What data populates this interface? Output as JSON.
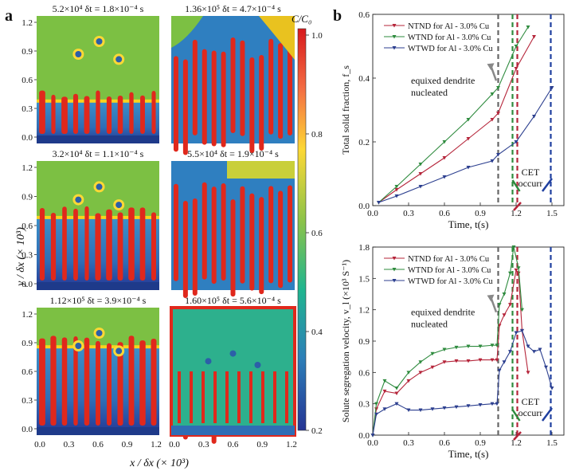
{
  "panel_a": {
    "letter": "a",
    "titles": [
      "5.2×10⁴ δt = 1.8×10⁻⁴ s",
      "1.36×10⁵ δt = 4.7×10⁻⁴ s",
      "3.2×10⁴ δt = 1.1×10⁻⁴ s",
      "5.5×10⁴ δt = 1.9×10⁻⁴ s",
      "1.12×10⁵ δt = 3.9×10⁻⁴ s",
      "1.60×10⁵ δt = 5.6×10⁻⁴ s"
    ],
    "y_ticks": [
      "1.2",
      "0.9",
      "0.6",
      "0.3",
      "0.0"
    ],
    "x_ticks": [
      "0.0",
      "0.3",
      "0.6",
      "0.9",
      "1.2"
    ],
    "y_label": "y / δx (× 10³)",
    "x_label": "x / δx (× 10³)",
    "colorbar": {
      "label": "C/C₀",
      "ticks": [
        "1.0",
        "0.8",
        "0.6",
        "0.4",
        "0.2"
      ],
      "colors": [
        "#d7191c",
        "#f46d43",
        "#fdd835",
        "#8bc34a",
        "#1fb58f",
        "#2c7fb8",
        "#253494"
      ]
    },
    "colors": {
      "liquid": "#7cc043",
      "solid": "#2f6db5",
      "dendrite": "#e0281c",
      "boundary": "#f7d31e"
    }
  },
  "panel_b": {
    "letter": "b",
    "top": {
      "ylabel": "Total solid fraction, f_s",
      "xlabel": "Time, t(s)",
      "yticks": [
        "0.0",
        "0.2",
        "0.4",
        "0.6"
      ],
      "xticks": [
        "0.0",
        "0.3",
        "0.6",
        "0.9",
        "1.2",
        "1.5"
      ],
      "legend": [
        "NTND for Al - 3.0% Cu",
        "WTND for Al - 3.0% Cu",
        "WTWD for Al - 3.0% Cu"
      ],
      "annotation_equiaxed": [
        "equixed dendrite",
        "nucleated"
      ],
      "annotation_cet": [
        "CET",
        "occurr"
      ]
    },
    "bottom": {
      "ylabel": "Solute segregation velocity, v_l (×10³ S⁻¹)",
      "xlabel": "Time, t(s)",
      "yticks": [
        "0.0",
        "0.3",
        "0.6",
        "0.9",
        "1.2",
        "1.5",
        "1.8"
      ],
      "xticks": [
        "0.0",
        "0.3",
        "0.6",
        "0.9",
        "1.2",
        "1.5"
      ],
      "legend": [
        "NTND for Al - 3.0% Cu",
        "WTND for Al - 3.0% Cu",
        "WTWD for Al - 3.0% Cu"
      ],
      "annotation_equiaxed": [
        "equixed dendrite",
        "nucleated"
      ],
      "annotation_cet": [
        "CET",
        "occurr"
      ]
    },
    "series_colors": {
      "NTND": "#b5253a",
      "WTND": "#2e8b3e",
      "WTWD": "#2c3f8f"
    },
    "vline_colors": [
      "#666666",
      "#2e8b3e",
      "#b5253a",
      "#1f3f9f"
    ]
  },
  "chart_data": [
    {
      "type": "line",
      "title": "",
      "xlabel": "Time, t(s)",
      "ylabel": "Total solid fraction, f_s",
      "xlim": [
        0,
        1.6
      ],
      "ylim": [
        0,
        0.6
      ],
      "series": [
        {
          "name": "NTND for Al - 3.0% Cu",
          "x": [
            0.05,
            0.2,
            0.4,
            0.6,
            0.8,
            1.0,
            1.05,
            1.2,
            1.35
          ],
          "y": [
            0.01,
            0.05,
            0.1,
            0.15,
            0.21,
            0.27,
            0.29,
            0.43,
            0.53
          ]
        },
        {
          "name": "WTND for Al - 3.0% Cu",
          "x": [
            0.05,
            0.2,
            0.4,
            0.6,
            0.8,
            1.0,
            1.05,
            1.2,
            1.3
          ],
          "y": [
            0.01,
            0.06,
            0.13,
            0.2,
            0.27,
            0.35,
            0.37,
            0.5,
            0.56
          ]
        },
        {
          "name": "WTWD for Al - 3.0% Cu",
          "x": [
            0.05,
            0.2,
            0.4,
            0.6,
            0.8,
            1.0,
            1.05,
            1.2,
            1.35,
            1.5
          ],
          "y": [
            0.01,
            0.03,
            0.06,
            0.09,
            0.12,
            0.14,
            0.16,
            0.2,
            0.28,
            0.37
          ]
        }
      ],
      "vlines": [
        1.05,
        1.17,
        1.21,
        1.49
      ]
    },
    {
      "type": "line",
      "title": "",
      "xlabel": "Time, t(s)",
      "ylabel": "Solute segregation velocity, v_l (×10³ S⁻¹)",
      "xlim": [
        0,
        1.6
      ],
      "ylim": [
        0,
        1.8
      ],
      "series": [
        {
          "name": "NTND for Al - 3.0% Cu",
          "x": [
            0.0,
            0.03,
            0.1,
            0.2,
            0.3,
            0.4,
            0.5,
            0.6,
            0.7,
            0.8,
            0.9,
            1.0,
            1.04,
            1.06,
            1.1,
            1.15,
            1.2,
            1.22,
            1.25,
            1.3
          ],
          "y": [
            0.0,
            0.25,
            0.42,
            0.4,
            0.52,
            0.6,
            0.65,
            0.7,
            0.71,
            0.71,
            0.72,
            0.72,
            0.72,
            1.05,
            1.15,
            1.25,
            1.58,
            1.55,
            1.0,
            0.6
          ]
        },
        {
          "name": "WTND for Al - 3.0% Cu",
          "x": [
            0.0,
            0.03,
            0.1,
            0.2,
            0.3,
            0.4,
            0.5,
            0.6,
            0.7,
            0.8,
            0.9,
            1.0,
            1.04,
            1.06,
            1.1,
            1.15,
            1.18,
            1.22,
            1.25
          ],
          "y": [
            0.0,
            0.3,
            0.52,
            0.45,
            0.6,
            0.7,
            0.78,
            0.82,
            0.84,
            0.85,
            0.85,
            0.86,
            0.86,
            1.25,
            1.35,
            1.55,
            1.8,
            1.6,
            1.2
          ]
        },
        {
          "name": "WTWD for Al - 3.0% Cu",
          "x": [
            0.0,
            0.03,
            0.1,
            0.2,
            0.3,
            0.4,
            0.5,
            0.6,
            0.7,
            0.8,
            0.9,
            1.0,
            1.04,
            1.06,
            1.1,
            1.15,
            1.2,
            1.25,
            1.3,
            1.35,
            1.4,
            1.45,
            1.5
          ],
          "y": [
            0.0,
            0.2,
            0.25,
            0.3,
            0.24,
            0.24,
            0.25,
            0.26,
            0.27,
            0.28,
            0.29,
            0.3,
            0.3,
            0.62,
            0.7,
            0.8,
            0.98,
            1.0,
            0.85,
            0.8,
            0.82,
            0.65,
            0.45
          ]
        }
      ],
      "vlines": [
        1.05,
        1.17,
        1.21,
        1.49
      ]
    }
  ]
}
